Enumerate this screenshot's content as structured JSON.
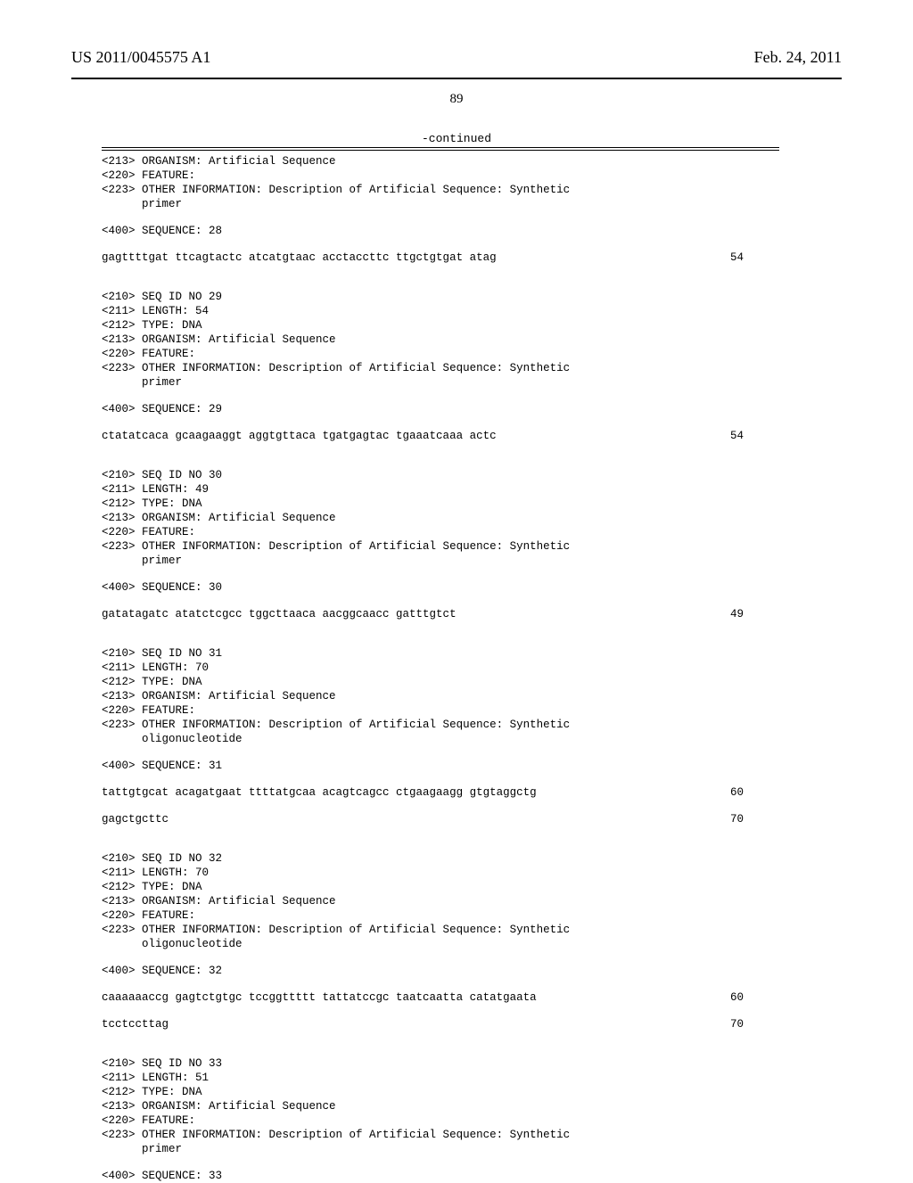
{
  "header": {
    "publication_number": "US 2011/0045575 A1",
    "publication_date": "Feb. 24, 2011"
  },
  "page_number": "89",
  "continued_label": "-continued",
  "entries": [
    {
      "meta": [
        "<213> ORGANISM: Artificial Sequence",
        "<220> FEATURE:",
        "<223> OTHER INFORMATION: Description of Artificial Sequence: Synthetic",
        "      primer"
      ],
      "seq_header": "<400> SEQUENCE: 28",
      "lines": [
        {
          "text": "gagttttgat ttcagtactc atcatgtaac acctaccttc ttgctgtgat atag",
          "num": "54"
        }
      ]
    },
    {
      "meta": [
        "<210> SEQ ID NO 29",
        "<211> LENGTH: 54",
        "<212> TYPE: DNA",
        "<213> ORGANISM: Artificial Sequence",
        "<220> FEATURE:",
        "<223> OTHER INFORMATION: Description of Artificial Sequence: Synthetic",
        "      primer"
      ],
      "seq_header": "<400> SEQUENCE: 29",
      "lines": [
        {
          "text": "ctatatcaca gcaagaaggt aggtgttaca tgatgagtac tgaaatcaaa actc",
          "num": "54"
        }
      ]
    },
    {
      "meta": [
        "<210> SEQ ID NO 30",
        "<211> LENGTH: 49",
        "<212> TYPE: DNA",
        "<213> ORGANISM: Artificial Sequence",
        "<220> FEATURE:",
        "<223> OTHER INFORMATION: Description of Artificial Sequence: Synthetic",
        "      primer"
      ],
      "seq_header": "<400> SEQUENCE: 30",
      "lines": [
        {
          "text": "gatatagatc atatctcgcc tggcttaaca aacggcaacc gatttgtct",
          "num": "49"
        }
      ]
    },
    {
      "meta": [
        "<210> SEQ ID NO 31",
        "<211> LENGTH: 70",
        "<212> TYPE: DNA",
        "<213> ORGANISM: Artificial Sequence",
        "<220> FEATURE:",
        "<223> OTHER INFORMATION: Description of Artificial Sequence: Synthetic",
        "      oligonucleotide"
      ],
      "seq_header": "<400> SEQUENCE: 31",
      "lines": [
        {
          "text": "tattgtgcat acagatgaat ttttatgcaa acagtcagcc ctgaagaagg gtgtaggctg",
          "num": "60"
        },
        {
          "text": "gagctgcttc",
          "num": "70"
        }
      ]
    },
    {
      "meta": [
        "<210> SEQ ID NO 32",
        "<211> LENGTH: 70",
        "<212> TYPE: DNA",
        "<213> ORGANISM: Artificial Sequence",
        "<220> FEATURE:",
        "<223> OTHER INFORMATION: Description of Artificial Sequence: Synthetic",
        "      oligonucleotide"
      ],
      "seq_header": "<400> SEQUENCE: 32",
      "lines": [
        {
          "text": "caaaaaaccg gagtctgtgc tccggttttt tattatccgc taatcaatta catatgaata",
          "num": "60"
        },
        {
          "text": "tcctccttag",
          "num": "70"
        }
      ]
    },
    {
      "meta": [
        "<210> SEQ ID NO 33",
        "<211> LENGTH: 51",
        "<212> TYPE: DNA",
        "<213> ORGANISM: Artificial Sequence",
        "<220> FEATURE:",
        "<223> OTHER INFORMATION: Description of Artificial Sequence: Synthetic",
        "      primer"
      ],
      "seq_header": "<400> SEQUENCE: 33",
      "lines": []
    }
  ]
}
